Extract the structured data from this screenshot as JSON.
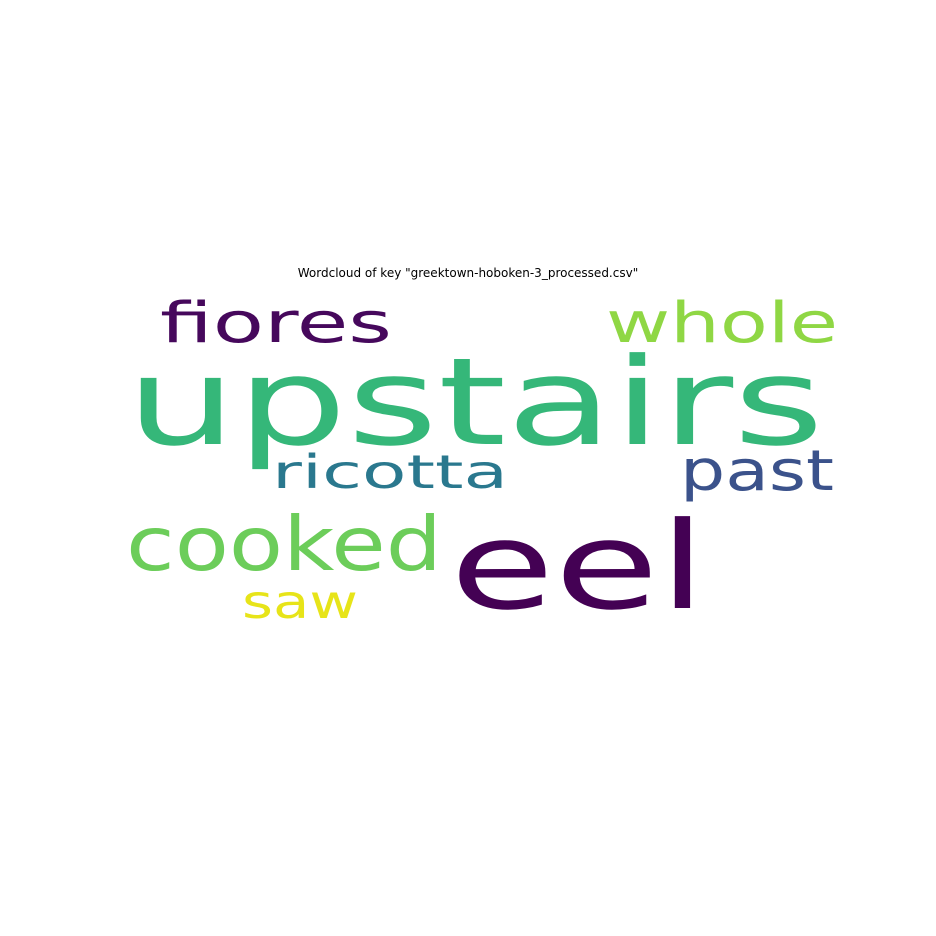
{
  "title": "Wordcloud of key \"greektown-hoboken-3_processed.csv\"",
  "chart_data": {
    "type": "wordcloud",
    "title": "Wordcloud of key \"greektown-hoboken-3_processed.csv\"",
    "words": [
      {
        "text": "upstairs",
        "weight": 1.0,
        "color": "#35b779"
      },
      {
        "text": "eel",
        "weight": 1.0,
        "color": "#440154"
      },
      {
        "text": "cooked",
        "weight": 0.62,
        "color": "#6ccd5a"
      },
      {
        "text": "fiores",
        "weight": 0.46,
        "color": "#46085c"
      },
      {
        "text": "whole",
        "weight": 0.46,
        "color": "#8fd744"
      },
      {
        "text": "past",
        "weight": 0.46,
        "color": "#3b528b"
      },
      {
        "text": "ricotta",
        "weight": 0.38,
        "color": "#2a788e"
      },
      {
        "text": "saw",
        "weight": 0.38,
        "color": "#e7e419"
      }
    ],
    "background": "#ffffff",
    "axis": "off"
  }
}
